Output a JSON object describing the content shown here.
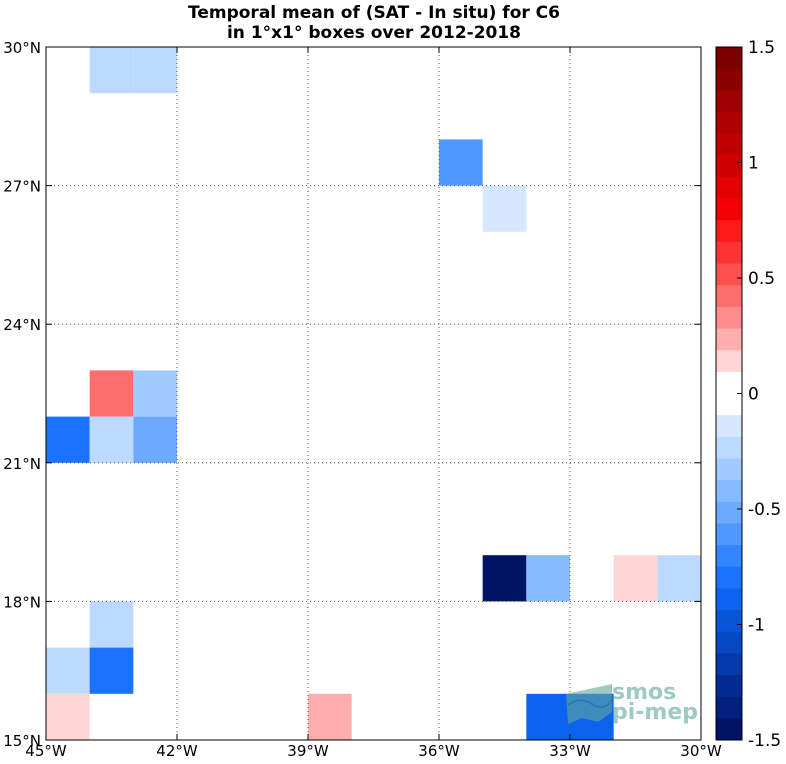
{
  "chart_data": {
    "type": "heatmap",
    "title_lines": [
      "Temporal mean of (SAT - In situ) for C6",
      "in 1°x1° boxes over 2012-2018"
    ],
    "xlabel": "",
    "ylabel": "",
    "xlim": [
      -45,
      -30
    ],
    "ylim": [
      15,
      30
    ],
    "x_ticks": [
      {
        "value": -45,
        "label": "45°W"
      },
      {
        "value": -42,
        "label": "42°W"
      },
      {
        "value": -39,
        "label": "39°W"
      },
      {
        "value": -36,
        "label": "36°W"
      },
      {
        "value": -33,
        "label": "33°W"
      },
      {
        "value": -30,
        "label": "30°W"
      }
    ],
    "y_ticks": [
      {
        "value": 15,
        "label": "15°N"
      },
      {
        "value": 18,
        "label": "18°N"
      },
      {
        "value": 21,
        "label": "21°N"
      },
      {
        "value": 24,
        "label": "24°N"
      },
      {
        "value": 27,
        "label": "27°N"
      },
      {
        "value": 30,
        "label": "30°N"
      }
    ],
    "grid": true,
    "cell_size_deg": 1,
    "cells": [
      {
        "lon": -44,
        "lat": 29,
        "value": -0.2
      },
      {
        "lon": -43,
        "lat": 29,
        "value": -0.2
      },
      {
        "lon": -36,
        "lat": 27,
        "value": -0.6
      },
      {
        "lon": -35,
        "lat": 26,
        "value": -0.15
      },
      {
        "lon": -44,
        "lat": 22,
        "value": 0.45
      },
      {
        "lon": -43,
        "lat": 22,
        "value": -0.35
      },
      {
        "lon": -45,
        "lat": 21,
        "value": -0.75
      },
      {
        "lon": -44,
        "lat": 21,
        "value": -0.25
      },
      {
        "lon": -43,
        "lat": 21,
        "value": -0.5
      },
      {
        "lon": -31,
        "lat": 18,
        "value": -0.25
      },
      {
        "lon": -35,
        "lat": 18,
        "value": -1.45
      },
      {
        "lon": -34,
        "lat": 18,
        "value": -0.4
      },
      {
        "lon": -32,
        "lat": 18,
        "value": 0.1
      },
      {
        "lon": -44,
        "lat": 17,
        "value": -0.25
      },
      {
        "lon": -45,
        "lat": 16,
        "value": -0.25
      },
      {
        "lon": -44,
        "lat": 16,
        "value": -0.75
      },
      {
        "lon": -45,
        "lat": 15,
        "value": 0.1
      },
      {
        "lon": -39,
        "lat": 15,
        "value": 0.2
      },
      {
        "lon": -34,
        "lat": 15,
        "value": -0.85
      },
      {
        "lon": -33,
        "lat": 15,
        "value": -0.85
      }
    ],
    "colorbar": {
      "range": [
        -1.5,
        1.5
      ],
      "ticks": [
        {
          "value": 1.5,
          "label": "1.5"
        },
        {
          "value": 1.0,
          "label": "1"
        },
        {
          "value": 0.5,
          "label": "0.5"
        },
        {
          "value": 0,
          "label": "0"
        },
        {
          "value": -0.5,
          "label": "-0.5"
        },
        {
          "value": -1.0,
          "label": "-1"
        },
        {
          "value": -1.5,
          "label": "-1.5"
        }
      ],
      "colors_top_to_bottom": [
        "#7a0000",
        "#8a0000",
        "#9c0000",
        "#ad0000",
        "#bf0000",
        "#d10000",
        "#e20000",
        "#f40000",
        "#ff1a1a",
        "#ff3333",
        "#ff5050",
        "#ff6e6e",
        "#ff8d8d",
        "#ffadad",
        "#ffd6d6",
        "#ffffff",
        "#ffffff",
        "#d6e8ff",
        "#bcd9ff",
        "#a1caff",
        "#86bbff",
        "#6baaff",
        "#4f98ff",
        "#3386ff",
        "#1a73ff",
        "#0a64f0",
        "#0756d8",
        "#0548c0",
        "#033aa8",
        "#022c92",
        "#011f7c",
        "#001466"
      ]
    }
  },
  "watermark": {
    "line1": "smos",
    "line2": "pi-mep"
  }
}
